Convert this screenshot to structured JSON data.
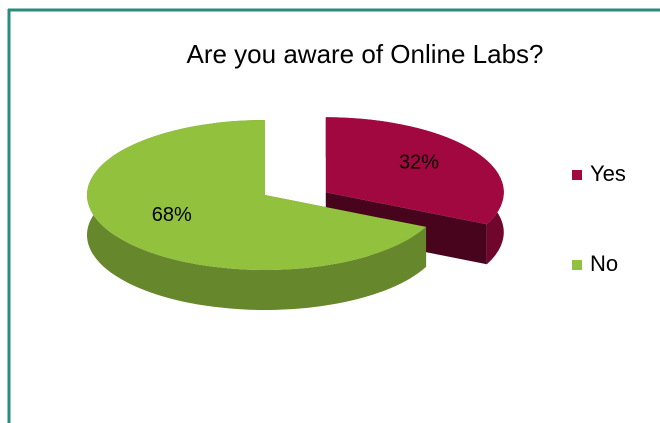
{
  "chart_data": {
    "type": "pie",
    "title": "Are you aware of Online Labs?",
    "categories": [
      "Yes",
      "No"
    ],
    "values": [
      32,
      68
    ],
    "value_labels": [
      "32%",
      "68%"
    ],
    "colors": [
      "#a0083f",
      "#92c13e"
    ],
    "legend": "right",
    "exploded": [
      true,
      false
    ]
  }
}
